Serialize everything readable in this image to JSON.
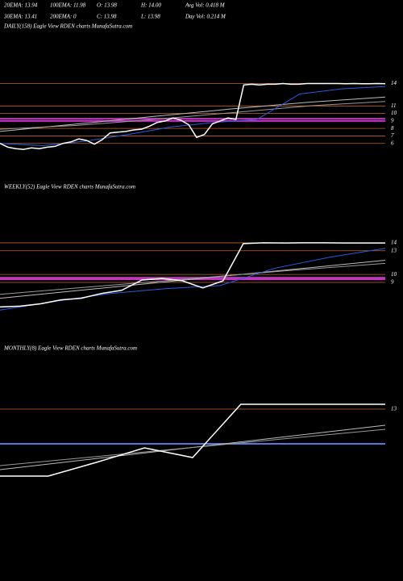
{
  "header": {
    "row1": [
      "20EMA: 13.94",
      "100EMA: 11.98",
      "O: 13.98",
      "H: 14.00",
      "Avg Vol: 0.418  M"
    ],
    "row2": [
      "30EMA: 13.41",
      "200EMA: 0",
      "C: 13.98",
      "L: 13.98",
      "Day Vol: 0.214  M"
    ]
  },
  "chart_data": [
    {
      "type": "line",
      "title": "DAILY(158) Eagle  View  RDEN  charts MunafaSutra.com",
      "ylim": [
        3.6,
        20.3
      ],
      "yticks": [
        14,
        11,
        10,
        9,
        8,
        7,
        6
      ],
      "grid": true,
      "grid_color": "#c0642a",
      "hlines": [
        {
          "value": 9,
          "color": "#e020e0"
        },
        {
          "value": 9.3,
          "color": "#b040b0"
        }
      ],
      "series": [
        {
          "color": "#bbbbbb",
          "values": [
            7.6,
            8.6,
            9.6,
            10.6,
            11.5,
            12.2
          ]
        },
        {
          "color": "#999999",
          "values": [
            7.9,
            8.4,
            9.2,
            10.1,
            11.0,
            11.6
          ]
        },
        {
          "color": "#2a5be0",
          "values": [
            6.0,
            5.7,
            6.3,
            7.2,
            8.2,
            8.8,
            9.2,
            12.6,
            13.3,
            13.6
          ]
        },
        {
          "color": "#ffffff",
          "values": [
            6.0,
            5.5,
            5.3,
            5.2,
            5.4,
            5.3,
            5.5,
            5.6,
            6.0,
            6.2,
            6.6,
            6.4,
            5.9,
            6.5,
            7.4,
            7.5,
            7.6,
            7.8,
            7.9,
            8.3,
            8.8,
            9.0,
            9.4,
            9.1,
            8.5,
            6.8,
            7.2,
            8.6,
            9.0,
            9.4,
            9.2,
            13.8,
            13.9,
            13.8,
            13.9,
            13.9,
            14.0,
            13.9,
            13.9,
            14.0,
            14.0,
            14.0,
            14.0,
            14.0,
            13.98,
            14.0,
            13.98,
            13.98,
            14.0,
            13.98
          ]
        }
      ]
    },
    {
      "type": "line",
      "title": "WEEKLY(52) Eagle  View  RDEN  charts MunafaSutra.com",
      "ylim": [
        3.9,
        19.7
      ],
      "yticks": [
        14,
        13,
        10,
        9
      ],
      "grid": true,
      "grid_color": "#c0642a",
      "hlines": [
        {
          "value": 9.4,
          "color": "#e020e0"
        },
        {
          "value": 9.6,
          "color": "#b040b0"
        }
      ],
      "series": [
        {
          "color": "#bbbbbb",
          "values": [
            7.0,
            8.2,
            9.4,
            10.6,
            11.8
          ]
        },
        {
          "color": "#999999",
          "values": [
            7.5,
            8.5,
            9.5,
            10.5,
            11.4
          ]
        },
        {
          "color": "#2a5be0",
          "values": [
            5.5,
            6.6,
            7.6,
            8.2,
            8.6,
            10.8,
            12.2,
            13.3
          ]
        },
        {
          "color": "#ffffff",
          "values": [
            5.9,
            6.0,
            6.3,
            6.8,
            7.0,
            7.6,
            8.0,
            9.3,
            9.5,
            9.2,
            8.3,
            9.2,
            13.9,
            14.0,
            13.98,
            14.0,
            14.0,
            13.98,
            13.98,
            13.98
          ]
        }
      ]
    },
    {
      "type": "line",
      "title": "MONTHLY(8) Eagle  View  RDEN  charts MunafaSutra.com",
      "ylim": [
        -6.3,
        19.2
      ],
      "yticks": [
        13
      ],
      "grid": true,
      "grid_color": "#c0642a",
      "hlines": [
        {
          "value": 8.7,
          "color": "#5577dd"
        }
      ],
      "series": [
        {
          "color": "#bbbbbb",
          "values": [
            5.5,
            11.0
          ]
        },
        {
          "color": "#999999",
          "values": [
            6.0,
            10.5
          ]
        },
        {
          "color": "#ffffff",
          "values": [
            4.7,
            4.7,
            6.4,
            8.2,
            7.0,
            13.6,
            13.6,
            13.6,
            13.6
          ]
        }
      ]
    }
  ]
}
